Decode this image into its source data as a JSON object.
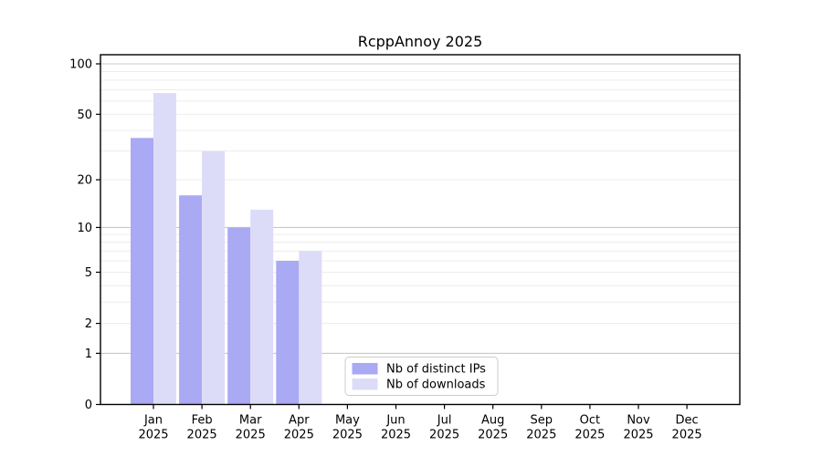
{
  "title": "RcppAnnoy 2025",
  "chart_data": {
    "type": "bar",
    "title": "RcppAnnoy 2025",
    "categories": [
      "Jan",
      "Feb",
      "Mar",
      "Apr",
      "May",
      "Jun",
      "Jul",
      "Aug",
      "Sep",
      "Oct",
      "Nov",
      "Dec"
    ],
    "year_label": "2025",
    "series": [
      {
        "name": "Nb of distinct IPs",
        "color": "#a9a9f4",
        "values": [
          36,
          16,
          10,
          6,
          0,
          0,
          0,
          0,
          0,
          0,
          0,
          0
        ]
      },
      {
        "name": "Nb of downloads",
        "color": "#dcdcf9",
        "values": [
          67,
          30,
          13,
          7,
          0,
          0,
          0,
          0,
          0,
          0,
          0,
          0
        ]
      }
    ],
    "yscale": "log1p",
    "ylim": [
      0,
      100
    ],
    "yticks": [
      0,
      1,
      2,
      5,
      10,
      20,
      50,
      100
    ],
    "major_gridlines": [
      1,
      10,
      100
    ],
    "minor_gridlines": [
      2,
      3,
      4,
      5,
      6,
      7,
      8,
      9,
      20,
      30,
      40,
      50,
      60,
      70,
      80,
      90
    ],
    "grid": true,
    "grid_major_color": "#c9c9c9",
    "grid_minor_color": "#ececec",
    "legend_position": "lower center-right inside"
  }
}
